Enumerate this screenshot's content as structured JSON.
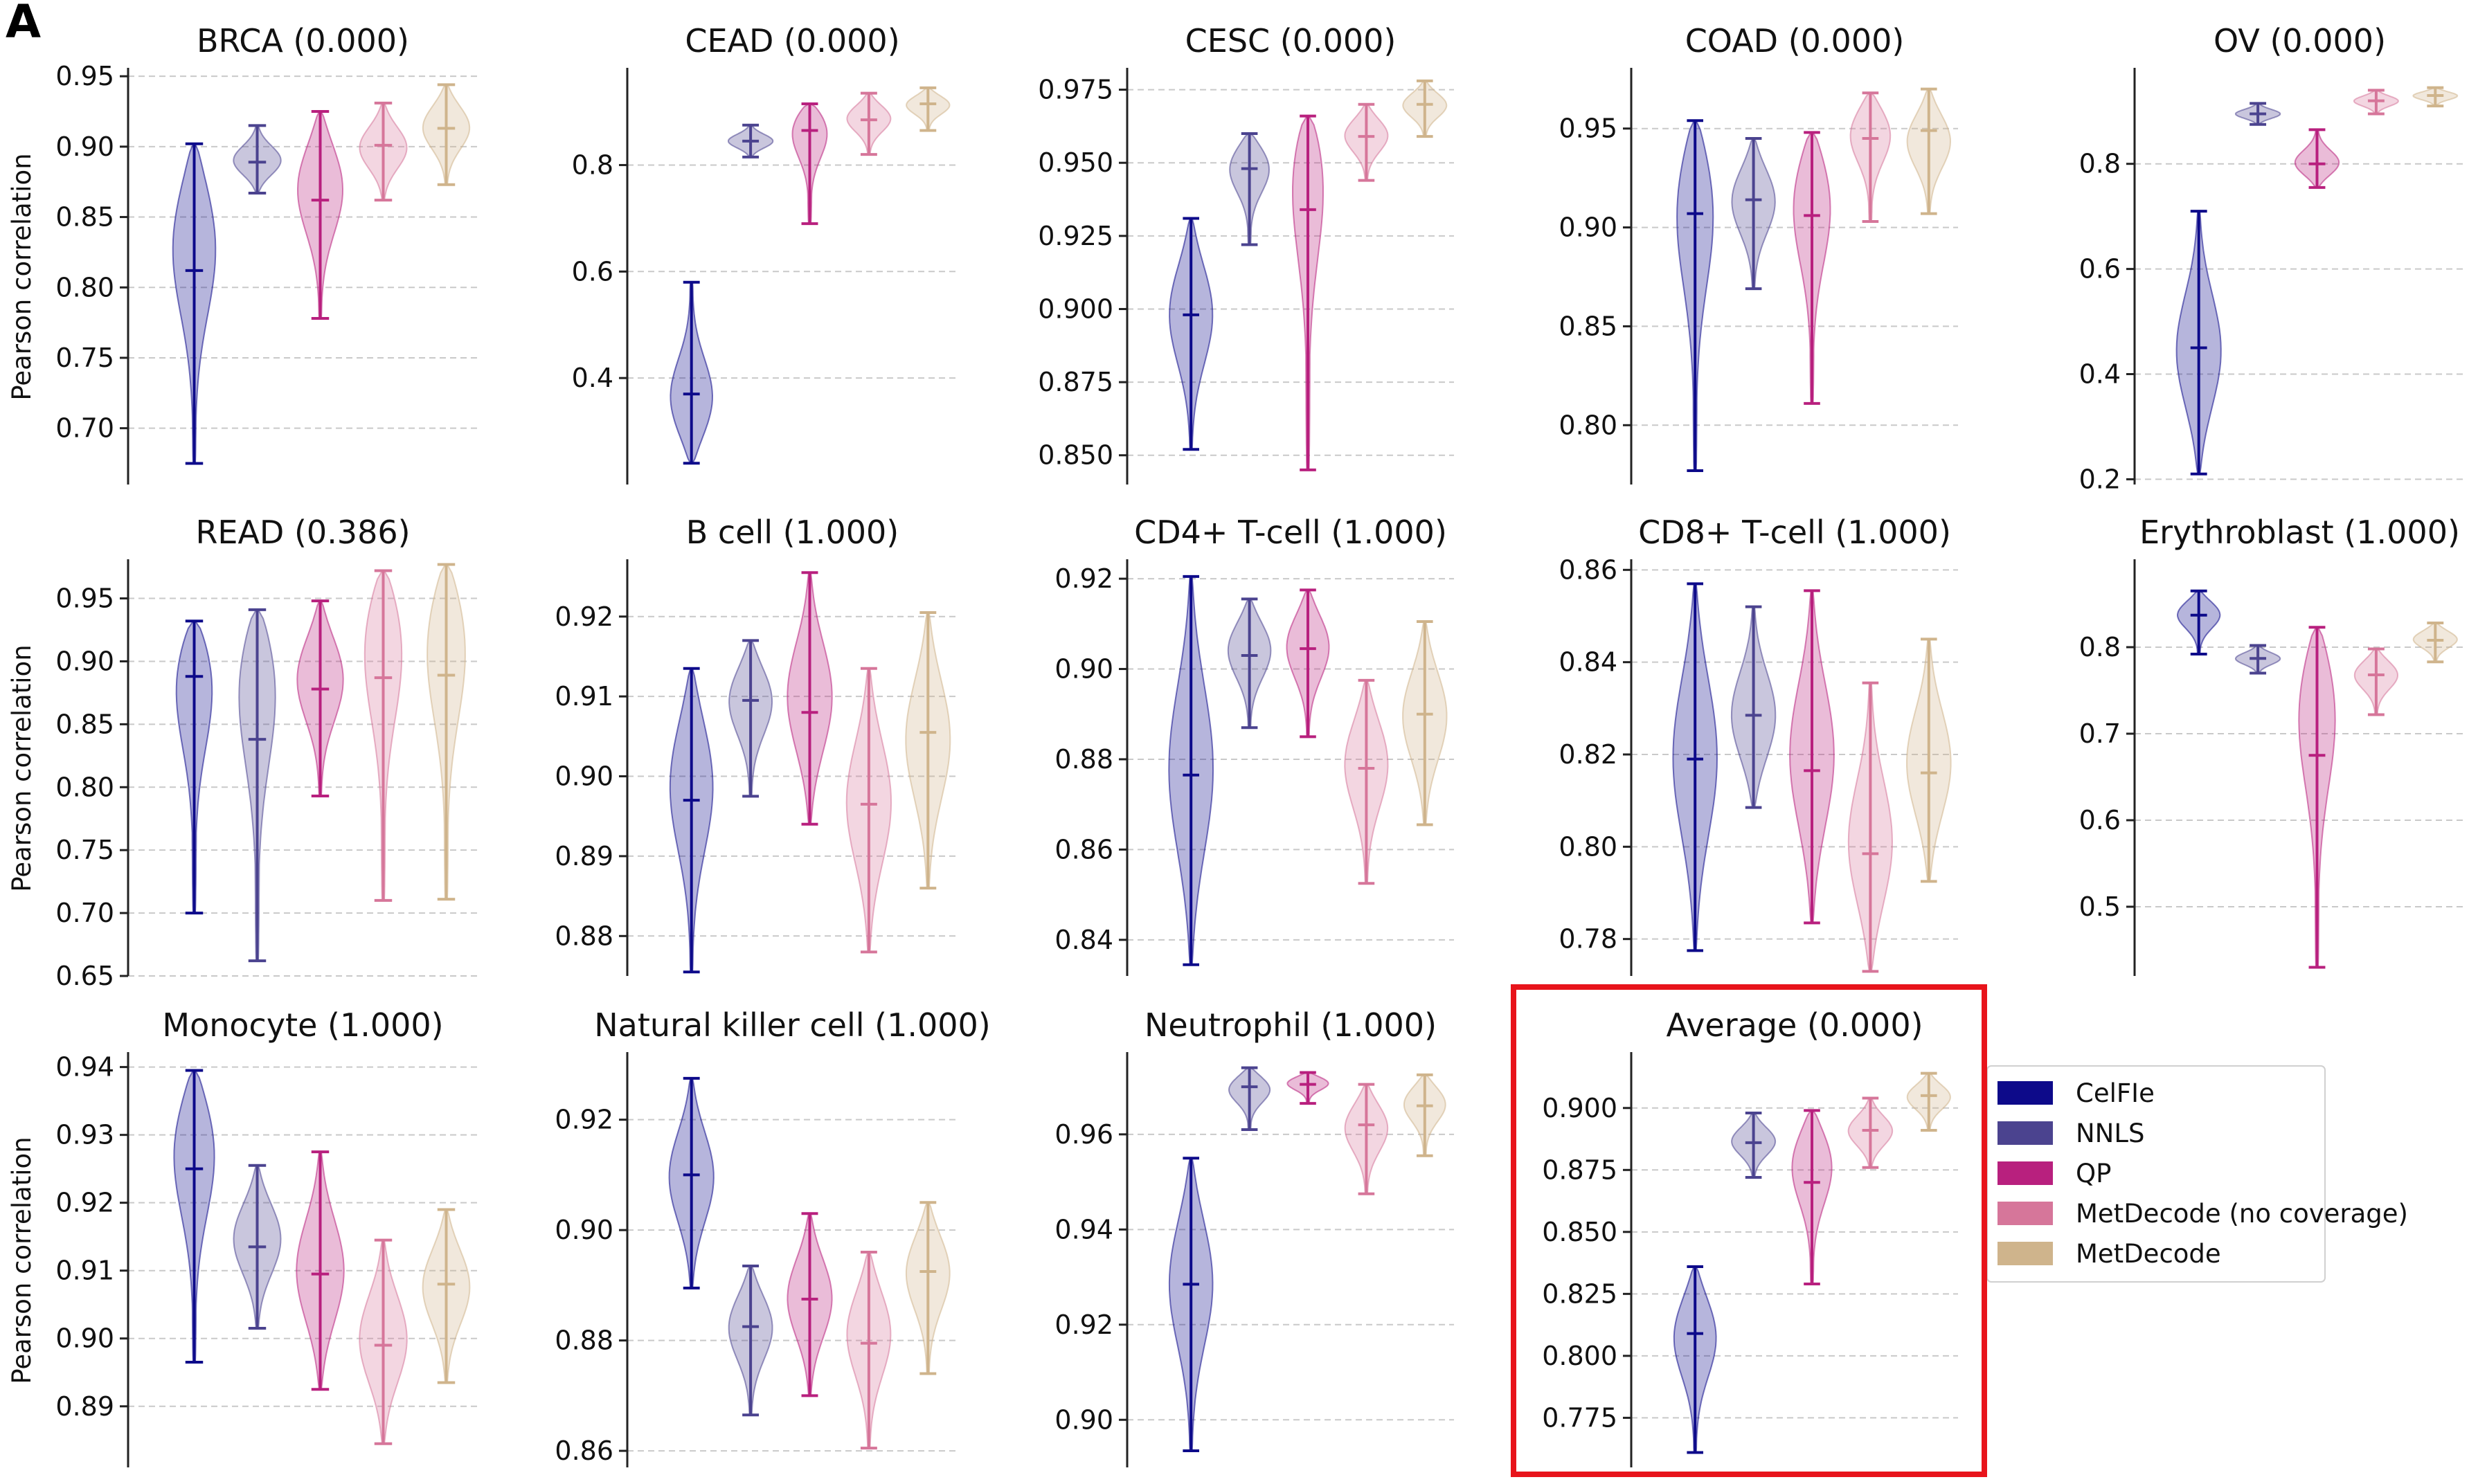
{
  "panel_label": "A",
  "colors": {
    "CelFIe": "#0d0a8a",
    "NNLS": "#4b438f",
    "QP": "#b8207e",
    "MetDecode (no coverage)": "#d6769a",
    "MetDecode": "#cfb48c",
    "highlight_box": "#e8141b"
  },
  "legend": [
    "CelFIe",
    "NNLS",
    "QP",
    "MetDecode (no coverage)",
    "MetDecode"
  ],
  "ylabel": "Pearson correlation",
  "chart_data": [
    {
      "type": "violin",
      "title": "BRCA (0.000)",
      "ylim": [
        0.66,
        0.955
      ],
      "ticks": [
        0.7,
        0.75,
        0.8,
        0.85,
        0.9,
        0.95
      ],
      "decimals": 2,
      "ylabel": "Pearson correlation",
      "series": [
        {
          "name": "CelFIe",
          "min": 0.675,
          "median": 0.812,
          "max": 0.902,
          "mode": 0.84
        },
        {
          "name": "NNLS",
          "min": 0.867,
          "median": 0.889,
          "max": 0.915,
          "mode": 0.89
        },
        {
          "name": "QP",
          "min": 0.778,
          "median": 0.862,
          "max": 0.925,
          "mode": 0.875
        },
        {
          "name": "MetDecode (no coverage)",
          "min": 0.862,
          "median": 0.901,
          "max": 0.931,
          "mode": 0.9
        },
        {
          "name": "MetDecode",
          "min": 0.873,
          "median": 0.913,
          "max": 0.944,
          "mode": 0.915
        }
      ]
    },
    {
      "type": "violin",
      "title": "CEAD (0.000)",
      "ylim": [
        0.2,
        0.98
      ],
      "ticks": [
        0.4,
        0.6,
        0.8
      ],
      "decimals": 1,
      "ylabel": "",
      "series": [
        {
          "name": "CelFIe",
          "min": 0.24,
          "median": 0.37,
          "max": 0.58,
          "mode": 0.35
        },
        {
          "name": "NNLS",
          "min": 0.815,
          "median": 0.845,
          "max": 0.875,
          "mode": 0.845
        },
        {
          "name": "QP",
          "min": 0.69,
          "median": 0.865,
          "max": 0.915,
          "mode": 0.88
        },
        {
          "name": "MetDecode (no coverage)",
          "min": 0.82,
          "median": 0.885,
          "max": 0.935,
          "mode": 0.89
        },
        {
          "name": "MetDecode",
          "min": 0.865,
          "median": 0.915,
          "max": 0.945,
          "mode": 0.915
        }
      ]
    },
    {
      "type": "violin",
      "title": "CESC (0.000)",
      "ylim": [
        0.84,
        0.982
      ],
      "ticks": [
        0.85,
        0.875,
        0.9,
        0.925,
        0.95,
        0.975
      ],
      "decimals": 3,
      "ylabel": "",
      "series": [
        {
          "name": "CelFIe",
          "min": 0.852,
          "median": 0.898,
          "max": 0.931,
          "mode": 0.9
        },
        {
          "name": "NNLS",
          "min": 0.922,
          "median": 0.948,
          "max": 0.96,
          "mode": 0.95
        },
        {
          "name": "QP",
          "min": 0.845,
          "median": 0.934,
          "max": 0.966,
          "mode": 0.955
        },
        {
          "name": "MetDecode (no coverage)",
          "min": 0.944,
          "median": 0.959,
          "max": 0.97,
          "mode": 0.96
        },
        {
          "name": "MetDecode",
          "min": 0.959,
          "median": 0.97,
          "max": 0.978,
          "mode": 0.97
        }
      ]
    },
    {
      "type": "violin",
      "title": "COAD (0.000)",
      "ylim": [
        0.77,
        0.98
      ],
      "ticks": [
        0.8,
        0.85,
        0.9,
        0.95
      ],
      "decimals": 2,
      "ylabel": "",
      "series": [
        {
          "name": "CelFIe",
          "min": 0.777,
          "median": 0.907,
          "max": 0.954,
          "mode": 0.92
        },
        {
          "name": "NNLS",
          "min": 0.869,
          "median": 0.914,
          "max": 0.945,
          "mode": 0.915
        },
        {
          "name": "QP",
          "min": 0.811,
          "median": 0.906,
          "max": 0.948,
          "mode": 0.92
        },
        {
          "name": "MetDecode (no coverage)",
          "min": 0.903,
          "median": 0.945,
          "max": 0.968,
          "mode": 0.95
        },
        {
          "name": "MetDecode",
          "min": 0.907,
          "median": 0.949,
          "max": 0.97,
          "mode": 0.945
        }
      ]
    },
    {
      "type": "violin",
      "title": "OV (0.000)",
      "ylim": [
        0.19,
        0.98
      ],
      "ticks": [
        0.2,
        0.4,
        0.6,
        0.8
      ],
      "decimals": 1,
      "ylabel": "",
      "series": [
        {
          "name": "CelFIe",
          "min": 0.21,
          "median": 0.45,
          "max": 0.71,
          "mode": 0.44
        },
        {
          "name": "NNLS",
          "min": 0.875,
          "median": 0.895,
          "max": 0.915,
          "mode": 0.895
        },
        {
          "name": "QP",
          "min": 0.755,
          "median": 0.8,
          "max": 0.865,
          "mode": 0.8
        },
        {
          "name": "MetDecode (no coverage)",
          "min": 0.895,
          "median": 0.92,
          "max": 0.94,
          "mode": 0.92
        },
        {
          "name": "MetDecode",
          "min": 0.91,
          "median": 0.93,
          "max": 0.945,
          "mode": 0.93
        }
      ]
    },
    {
      "type": "violin",
      "title": "READ (0.386)",
      "ylim": [
        0.65,
        0.98
      ],
      "ticks": [
        0.65,
        0.7,
        0.75,
        0.8,
        0.85,
        0.9,
        0.95
      ],
      "decimals": 2,
      "ylabel": "Pearson correlation",
      "series": [
        {
          "name": "CelFIe",
          "min": 0.7,
          "median": 0.888,
          "max": 0.932,
          "mode": 0.9
        },
        {
          "name": "NNLS",
          "min": 0.662,
          "median": 0.838,
          "max": 0.941,
          "mode": 0.9
        },
        {
          "name": "QP",
          "min": 0.793,
          "median": 0.878,
          "max": 0.948,
          "mode": 0.89
        },
        {
          "name": "MetDecode (no coverage)",
          "min": 0.71,
          "median": 0.887,
          "max": 0.972,
          "mode": 0.93
        },
        {
          "name": "MetDecode",
          "min": 0.711,
          "median": 0.889,
          "max": 0.977,
          "mode": 0.93
        }
      ]
    },
    {
      "type": "violin",
      "title": "B cell (1.000)",
      "ylim": [
        0.875,
        0.927
      ],
      "ticks": [
        0.88,
        0.89,
        0.9,
        0.91,
        0.92
      ],
      "decimals": 2,
      "ylabel": "",
      "series": [
        {
          "name": "CelFIe",
          "min": 0.8755,
          "median": 0.897,
          "max": 0.9135,
          "mode": 0.9
        },
        {
          "name": "NNLS",
          "min": 0.8975,
          "median": 0.9095,
          "max": 0.917,
          "mode": 0.91
        },
        {
          "name": "QP",
          "min": 0.894,
          "median": 0.908,
          "max": 0.9255,
          "mode": 0.91
        },
        {
          "name": "MetDecode (no coverage)",
          "min": 0.878,
          "median": 0.8965,
          "max": 0.9135,
          "mode": 0.897
        },
        {
          "name": "MetDecode",
          "min": 0.886,
          "median": 0.9055,
          "max": 0.9205,
          "mode": 0.905
        }
      ]
    },
    {
      "type": "violin",
      "title": "CD4+ T-cell (1.000)",
      "ylim": [
        0.832,
        0.924
      ],
      "ticks": [
        0.84,
        0.86,
        0.88,
        0.9,
        0.92
      ],
      "decimals": 2,
      "ylabel": "",
      "series": [
        {
          "name": "CelFIe",
          "min": 0.8345,
          "median": 0.8765,
          "max": 0.9205,
          "mode": 0.878
        },
        {
          "name": "NNLS",
          "min": 0.887,
          "median": 0.903,
          "max": 0.9155,
          "mode": 0.905
        },
        {
          "name": "QP",
          "min": 0.885,
          "median": 0.9045,
          "max": 0.9175,
          "mode": 0.906
        },
        {
          "name": "MetDecode (no coverage)",
          "min": 0.8525,
          "median": 0.878,
          "max": 0.8975,
          "mode": 0.88
        },
        {
          "name": "MetDecode",
          "min": 0.8655,
          "median": 0.89,
          "max": 0.9105,
          "mode": 0.89
        }
      ]
    },
    {
      "type": "violin",
      "title": "CD8+ T-cell (1.000)",
      "ylim": [
        0.772,
        0.862
      ],
      "ticks": [
        0.78,
        0.8,
        0.82,
        0.84,
        0.86
      ],
      "decimals": 2,
      "ylabel": "",
      "series": [
        {
          "name": "CelFIe",
          "min": 0.7775,
          "median": 0.819,
          "max": 0.857,
          "mode": 0.82
        },
        {
          "name": "NNLS",
          "min": 0.8085,
          "median": 0.8285,
          "max": 0.852,
          "mode": 0.828
        },
        {
          "name": "QP",
          "min": 0.7835,
          "median": 0.8165,
          "max": 0.8555,
          "mode": 0.82
        },
        {
          "name": "MetDecode (no coverage)",
          "min": 0.773,
          "median": 0.7985,
          "max": 0.8355,
          "mode": 0.8
        },
        {
          "name": "MetDecode",
          "min": 0.7925,
          "median": 0.816,
          "max": 0.845,
          "mode": 0.818
        }
      ]
    },
    {
      "type": "violin",
      "title": "Erythroblast (1.000)",
      "ylim": [
        0.42,
        0.9
      ],
      "ticks": [
        0.5,
        0.6,
        0.7,
        0.8
      ],
      "decimals": 1,
      "ylabel": "",
      "series": [
        {
          "name": "CelFIe",
          "min": 0.792,
          "median": 0.837,
          "max": 0.865,
          "mode": 0.84
        },
        {
          "name": "NNLS",
          "min": 0.77,
          "median": 0.787,
          "max": 0.802,
          "mode": 0.787
        },
        {
          "name": "QP",
          "min": 0.43,
          "median": 0.675,
          "max": 0.823,
          "mode": 0.75
        },
        {
          "name": "MetDecode (no coverage)",
          "min": 0.722,
          "median": 0.768,
          "max": 0.798,
          "mode": 0.77
        },
        {
          "name": "MetDecode",
          "min": 0.783,
          "median": 0.808,
          "max": 0.828,
          "mode": 0.81
        }
      ]
    },
    {
      "type": "violin",
      "title": "Monocyte (1.000)",
      "ylim": [
        0.881,
        0.942
      ],
      "ticks": [
        0.89,
        0.9,
        0.91,
        0.92,
        0.93,
        0.94
      ],
      "decimals": 2,
      "ylabel": "Pearson correlation",
      "series": [
        {
          "name": "CelFIe",
          "min": 0.8965,
          "median": 0.925,
          "max": 0.9395,
          "mode": 0.93
        },
        {
          "name": "NNLS",
          "min": 0.9015,
          "median": 0.9135,
          "max": 0.9255,
          "mode": 0.915
        },
        {
          "name": "QP",
          "min": 0.8925,
          "median": 0.9095,
          "max": 0.9275,
          "mode": 0.91
        },
        {
          "name": "MetDecode (no coverage)",
          "min": 0.8845,
          "median": 0.899,
          "max": 0.9145,
          "mode": 0.9
        },
        {
          "name": "MetDecode",
          "min": 0.8935,
          "median": 0.908,
          "max": 0.919,
          "mode": 0.908
        }
      ]
    },
    {
      "type": "violin",
      "title": "Natural killer cell (1.000)",
      "ylim": [
        0.857,
        0.932
      ],
      "ticks": [
        0.86,
        0.88,
        0.9,
        0.92
      ],
      "decimals": 2,
      "ylabel": "",
      "series": [
        {
          "name": "CelFIe",
          "min": 0.8895,
          "median": 0.91,
          "max": 0.9275,
          "mode": 0.91
        },
        {
          "name": "NNLS",
          "min": 0.8665,
          "median": 0.8825,
          "max": 0.8935,
          "mode": 0.883
        },
        {
          "name": "QP",
          "min": 0.87,
          "median": 0.8875,
          "max": 0.903,
          "mode": 0.888
        },
        {
          "name": "MetDecode (no coverage)",
          "min": 0.8605,
          "median": 0.8795,
          "max": 0.896,
          "mode": 0.882
        },
        {
          "name": "MetDecode",
          "min": 0.874,
          "median": 0.8925,
          "max": 0.905,
          "mode": 0.893
        }
      ]
    },
    {
      "type": "violin",
      "title": "Neutrophil (1.000)",
      "ylim": [
        0.89,
        0.977
      ],
      "ticks": [
        0.9,
        0.92,
        0.94,
        0.96
      ],
      "decimals": 2,
      "ylabel": "",
      "series": [
        {
          "name": "CelFIe",
          "min": 0.8935,
          "median": 0.9285,
          "max": 0.955,
          "mode": 0.93
        },
        {
          "name": "NNLS",
          "min": 0.961,
          "median": 0.97,
          "max": 0.974,
          "mode": 0.97
        },
        {
          "name": "QP",
          "min": 0.9665,
          "median": 0.9705,
          "max": 0.973,
          "mode": 0.971
        },
        {
          "name": "MetDecode (no coverage)",
          "min": 0.9475,
          "median": 0.962,
          "max": 0.9705,
          "mode": 0.962
        },
        {
          "name": "MetDecode",
          "min": 0.9555,
          "median": 0.966,
          "max": 0.9725,
          "mode": 0.967
        }
      ]
    },
    {
      "type": "violin",
      "title": "Average (0.000)",
      "ylim": [
        0.755,
        0.922
      ],
      "ticks": [
        0.775,
        0.8,
        0.825,
        0.85,
        0.875,
        0.9
      ],
      "decimals": 3,
      "ylabel": "",
      "highlighted": true,
      "series": [
        {
          "name": "CelFIe",
          "min": 0.761,
          "median": 0.809,
          "max": 0.836,
          "mode": 0.81
        },
        {
          "name": "NNLS",
          "min": 0.872,
          "median": 0.886,
          "max": 0.898,
          "mode": 0.887
        },
        {
          "name": "QP",
          "min": 0.829,
          "median": 0.87,
          "max": 0.899,
          "mode": 0.88
        },
        {
          "name": "MetDecode (no coverage)",
          "min": 0.876,
          "median": 0.891,
          "max": 0.904,
          "mode": 0.891
        },
        {
          "name": "MetDecode",
          "min": 0.891,
          "median": 0.905,
          "max": 0.914,
          "mode": 0.905
        }
      ]
    }
  ]
}
